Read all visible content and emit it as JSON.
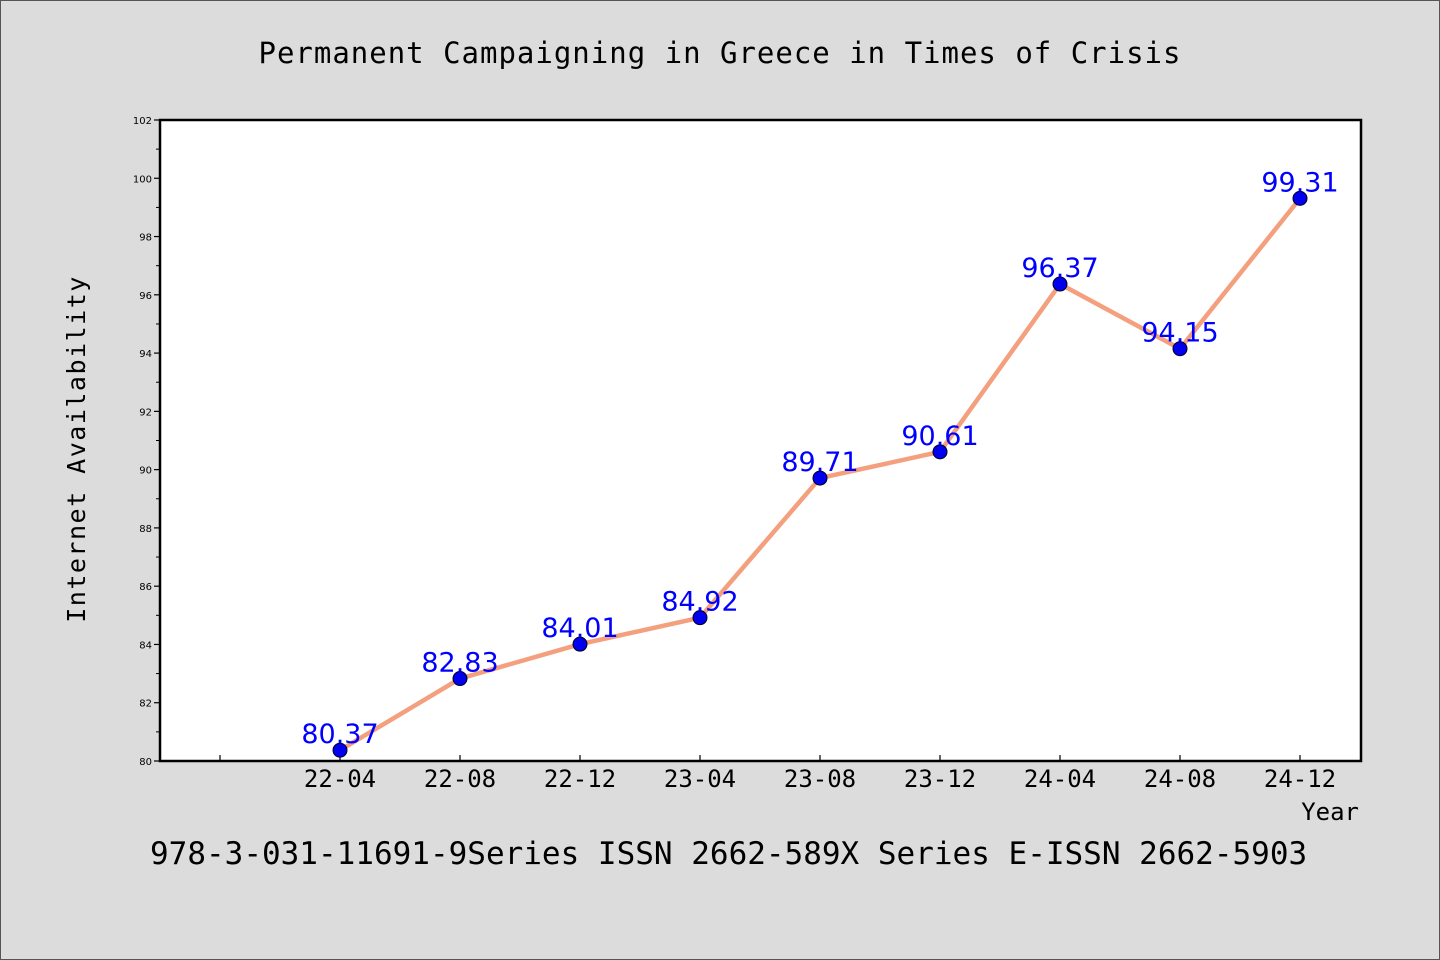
{
  "chart_data": {
    "type": "line",
    "title": "Permanent Campaigning in Greece in Times of Crisis",
    "xlabel": "Year",
    "ylabel": "Internet Availability",
    "categories": [
      "22-04",
      "22-08",
      "22-12",
      "23-04",
      "23-08",
      "23-12",
      "24-04",
      "24-08",
      "24-12"
    ],
    "values": [
      80.37,
      82.83,
      84.01,
      84.92,
      89.71,
      90.61,
      96.37,
      94.15,
      99.31
    ],
    "data_labels": [
      "80.37",
      "82.83",
      "84.01",
      "84.92",
      "89.71",
      "90.61",
      "96.37",
      "94.15",
      "99.31"
    ],
    "ylim": [
      80,
      102
    ],
    "yticks": [
      80,
      82,
      84,
      86,
      88,
      90,
      92,
      94,
      96,
      98,
      100,
      102
    ],
    "grid": false,
    "footer": "978-3-031-11691-9Series ISSN 2662-589X Series E-ISSN 2662-5903",
    "colors": {
      "line": "#f4a07e",
      "marker": "#0000ee",
      "label": "#0000ff",
      "background": "#dcdcdc",
      "plot_background": "#ffffff"
    }
  }
}
